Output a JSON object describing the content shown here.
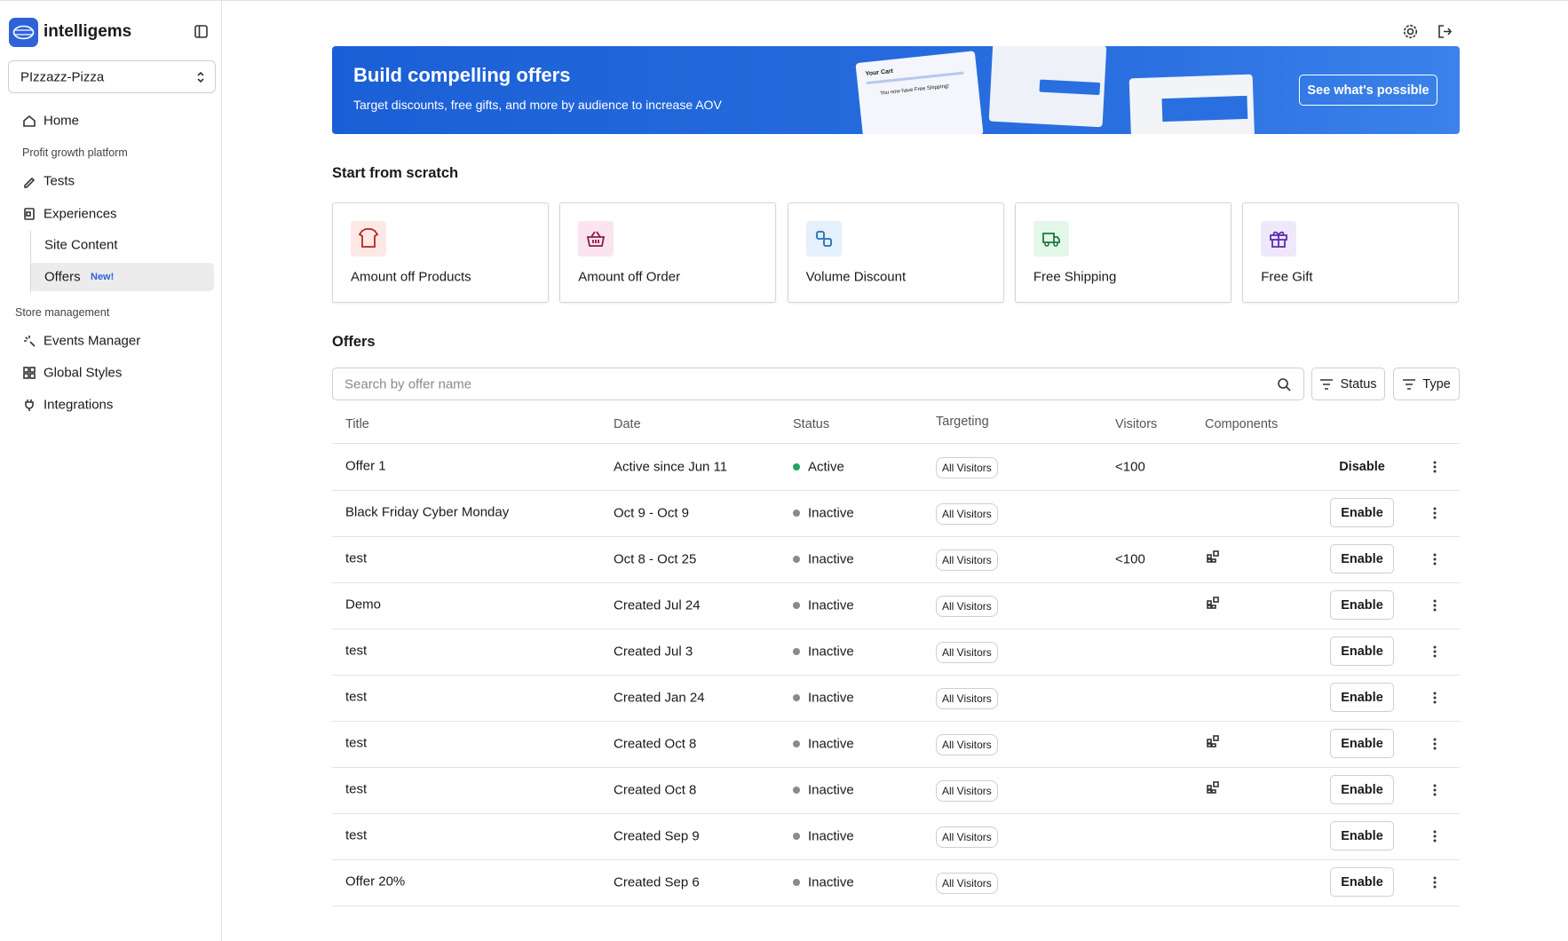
{
  "sidebar": {
    "brand": "intelligems",
    "store": "PIzzazz-Pizza",
    "nav": [
      {
        "kind": "item",
        "label": "Home"
      },
      {
        "kind": "section",
        "label": "Profit growth platform"
      },
      {
        "kind": "item",
        "label": "Tests"
      },
      {
        "kind": "item",
        "label": "Experiences"
      },
      {
        "kind": "sub",
        "label": "Site Content"
      },
      {
        "kind": "sub",
        "label": "Offers",
        "badge": "New!",
        "active": true
      },
      {
        "kind": "section",
        "label": "Store management"
      },
      {
        "kind": "item",
        "label": "Events Manager"
      },
      {
        "kind": "item",
        "label": "Global Styles"
      },
      {
        "kind": "item",
        "label": "Integrations"
      }
    ]
  },
  "banner": {
    "title": "Build compelling offers",
    "subtitle": "Target discounts, free gifts, and more by audience to increase AOV",
    "illustration": {
      "cart_title": "Your Cart",
      "cart_message": "You now have Free Shipping!"
    },
    "button": "See what's possible"
  },
  "scratch": {
    "title": "Start from scratch",
    "cards": [
      "Amount off Products",
      "Amount off Order",
      "Volume Discount",
      "Free Shipping",
      "Free Gift"
    ]
  },
  "offers": {
    "title": "Offers",
    "search_placeholder": "Search by offer name",
    "filters": [
      "Status",
      "Type"
    ],
    "columns": [
      "Title",
      "Date",
      "Status",
      "Targeting",
      "Visitors",
      "Components"
    ],
    "rows": [
      {
        "title": "Offer 1",
        "date": "Active since Jun 11",
        "status": "Active",
        "targeting": "All Visitors",
        "visitors": "<100",
        "components": false,
        "action": "Disable"
      },
      {
        "title": "Black Friday Cyber Monday",
        "date": "Oct 9 - Oct 9",
        "status": "Inactive",
        "targeting": "All Visitors",
        "visitors": null,
        "components": false,
        "action": "Enable"
      },
      {
        "title": "test",
        "date": "Oct 8 - Oct 25",
        "status": "Inactive",
        "targeting": "All Visitors",
        "visitors": "<100",
        "components": true,
        "action": "Enable"
      },
      {
        "title": "Demo",
        "date": "Created Jul 24",
        "status": "Inactive",
        "targeting": "All Visitors",
        "visitors": null,
        "components": true,
        "action": "Enable"
      },
      {
        "title": "test",
        "date": "Created Jul 3",
        "status": "Inactive",
        "targeting": "All Visitors",
        "visitors": null,
        "components": false,
        "action": "Enable"
      },
      {
        "title": "test",
        "date": "Created Jan 24",
        "status": "Inactive",
        "targeting": "All Visitors",
        "visitors": null,
        "components": false,
        "action": "Enable"
      },
      {
        "title": "test",
        "date": "Created Oct 8",
        "status": "Inactive",
        "targeting": "All Visitors",
        "visitors": null,
        "components": true,
        "action": "Enable"
      },
      {
        "title": "test",
        "date": "Created Oct 8",
        "status": "Inactive",
        "targeting": "All Visitors",
        "visitors": null,
        "components": true,
        "action": "Enable"
      },
      {
        "title": "test",
        "date": "Created Sep 9",
        "status": "Inactive",
        "targeting": "All Visitors",
        "visitors": null,
        "components": false,
        "action": "Enable"
      },
      {
        "title": "Offer 20%",
        "date": "Created Sep 6",
        "status": "Inactive",
        "targeting": "All Visitors",
        "visitors": null,
        "components": false,
        "action": "Enable"
      }
    ]
  }
}
